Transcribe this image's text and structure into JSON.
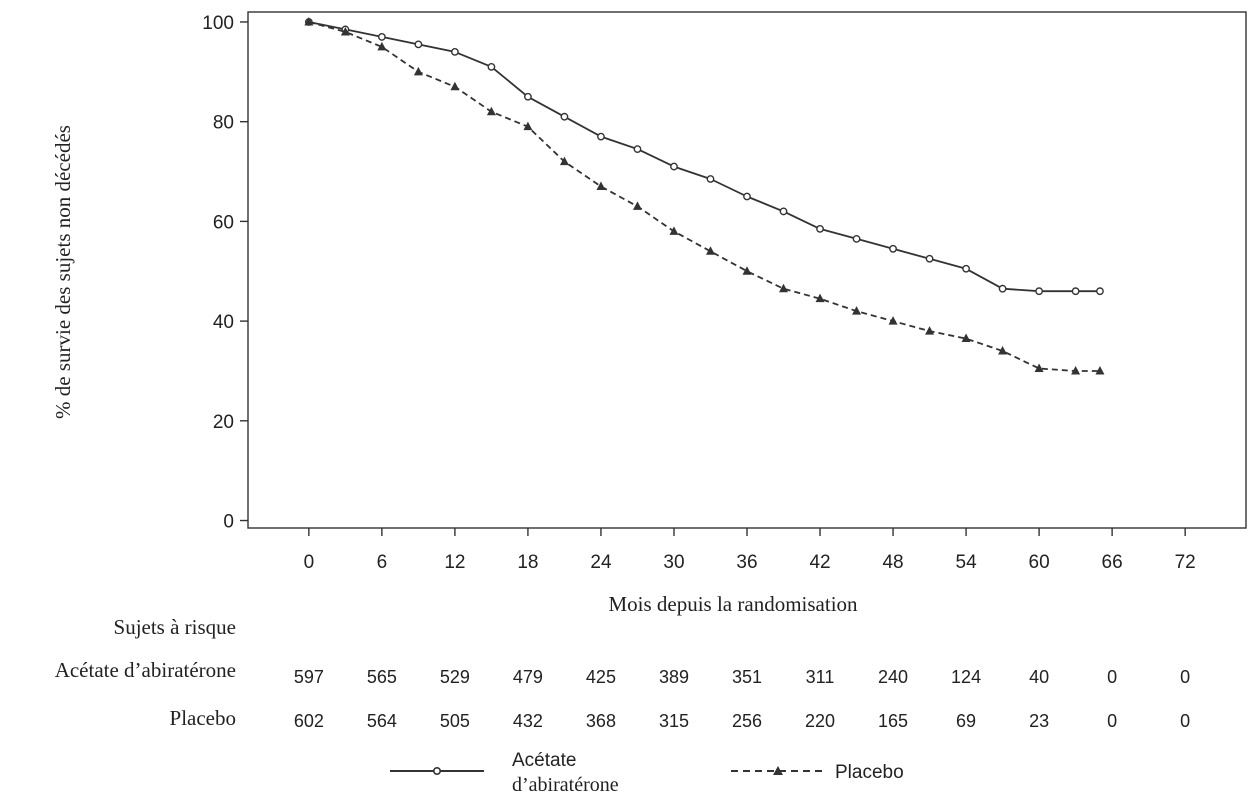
{
  "chart_data": {
    "type": "line",
    "xlabel": "Mois depuis la randomisation",
    "ylabel": "% de survie des sujets non décédés",
    "xlim": [
      -5,
      77
    ],
    "ylim": [
      -1.5,
      102
    ],
    "xticks": [
      0,
      6,
      12,
      18,
      24,
      30,
      36,
      42,
      48,
      54,
      60,
      66,
      72
    ],
    "yticks": [
      0,
      20,
      40,
      60,
      80,
      100
    ],
    "series": [
      {
        "name": "Acétate d’abiratérone",
        "line_style": "solid",
        "marker": "open-circle",
        "color": "#333333",
        "x": [
          0,
          3,
          6,
          9,
          12,
          15,
          18,
          21,
          24,
          27,
          30,
          33,
          36,
          39,
          42,
          45,
          48,
          51,
          54,
          57,
          60,
          63,
          65
        ],
        "y": [
          100,
          98.5,
          97,
          95.5,
          94,
          91,
          85,
          81,
          77,
          74.5,
          71,
          68.5,
          65,
          62,
          58.5,
          56.5,
          54.5,
          52.5,
          50.5,
          46.5,
          46,
          46,
          46
        ]
      },
      {
        "name": "Placebo",
        "line_style": "dashed",
        "marker": "filled-triangle",
        "color": "#333333",
        "x": [
          0,
          3,
          6,
          9,
          12,
          15,
          18,
          21,
          24,
          27,
          30,
          33,
          36,
          39,
          42,
          45,
          48,
          51,
          54,
          57,
          60,
          63,
          65
        ],
        "y": [
          100,
          98,
          95,
          90,
          87,
          82,
          79,
          72,
          67,
          63,
          58,
          54,
          50,
          46.5,
          44.5,
          42,
          40,
          38,
          36.5,
          34,
          30.5,
          30,
          30
        ]
      }
    ],
    "risk_table": {
      "title": "Sujets à risque",
      "rows": [
        {
          "label": "Acétate d’abiratérone",
          "values": [
            "597",
            "565",
            "529",
            "479",
            "425",
            "389",
            "351",
            "311",
            "240",
            "124",
            "40",
            "0",
            "0"
          ]
        },
        {
          "label": "Placebo",
          "values": [
            "602",
            "564",
            "505",
            "432",
            "368",
            "315",
            "256",
            "220",
            "165",
            "69",
            "23",
            "0",
            "0"
          ]
        }
      ]
    },
    "legend": {
      "placement": "bottom-center",
      "entries": [
        {
          "lines": [
            "Acétate",
            "d’abiratérone"
          ]
        },
        {
          "lines": [
            "Placebo"
          ]
        }
      ]
    }
  }
}
